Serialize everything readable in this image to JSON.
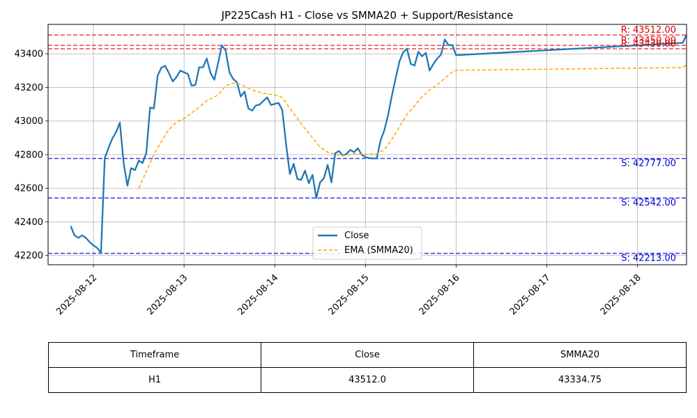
{
  "chart_data": {
    "type": "line",
    "title": "JP225Cash H1 - Close vs SMMA20 + Support/Resistance",
    "xlabel": "",
    "ylabel": "",
    "xlim": [
      "2025-08-11 12:00",
      "2025-08-18 13:00"
    ],
    "ylim": [
      42145,
      43575
    ],
    "grid": true,
    "legend_position": "lower center",
    "x_ticks": [
      "2025-08-12",
      "2025-08-13",
      "2025-08-14",
      "2025-08-15",
      "2025-08-16",
      "2025-08-17",
      "2025-08-18"
    ],
    "y_ticks": [
      42200,
      42400,
      42600,
      42800,
      43000,
      43200,
      43400
    ],
    "series": [
      {
        "name": "Close",
        "color": "#1f77b4",
        "style": "solid",
        "points": [
          [
            "2025-08-11 18:00",
            42375
          ],
          [
            "2025-08-11 19:00",
            42320
          ],
          [
            "2025-08-11 20:00",
            42305
          ],
          [
            "2025-08-11 21:00",
            42320
          ],
          [
            "2025-08-11 22:00",
            42305
          ],
          [
            "2025-08-11 23:00",
            42280
          ],
          [
            "2025-08-12 00:00",
            42260
          ],
          [
            "2025-08-12 01:00",
            42245
          ],
          [
            "2025-08-12 02:00",
            42215
          ],
          [
            "2025-08-12 03:00",
            42780
          ],
          [
            "2025-08-12 04:00",
            42840
          ],
          [
            "2025-08-12 05:00",
            42895
          ],
          [
            "2025-08-12 06:00",
            42935
          ],
          [
            "2025-08-12 07:00",
            42990
          ],
          [
            "2025-08-12 08:00",
            42750
          ],
          [
            "2025-08-12 09:00",
            42615
          ],
          [
            "2025-08-12 10:00",
            42720
          ],
          [
            "2025-08-12 11:00",
            42708
          ],
          [
            "2025-08-12 12:00",
            42765
          ],
          [
            "2025-08-12 13:00",
            42750
          ],
          [
            "2025-08-12 14:00",
            42810
          ],
          [
            "2025-08-12 15:00",
            43080
          ],
          [
            "2025-08-12 16:00",
            43075
          ],
          [
            "2025-08-12 17:00",
            43270
          ],
          [
            "2025-08-12 18:00",
            43318
          ],
          [
            "2025-08-12 19:00",
            43328
          ],
          [
            "2025-08-12 20:00",
            43285
          ],
          [
            "2025-08-12 21:00",
            43235
          ],
          [
            "2025-08-12 22:00",
            43262
          ],
          [
            "2025-08-12 23:00",
            43300
          ],
          [
            "2025-08-13 00:00",
            43290
          ],
          [
            "2025-08-13 01:00",
            43280
          ],
          [
            "2025-08-13 02:00",
            43210
          ],
          [
            "2025-08-13 03:00",
            43215
          ],
          [
            "2025-08-13 04:00",
            43320
          ],
          [
            "2025-08-13 05:00",
            43320
          ],
          [
            "2025-08-13 06:00",
            43372
          ],
          [
            "2025-08-13 07:00",
            43285
          ],
          [
            "2025-08-13 08:00",
            43245
          ],
          [
            "2025-08-13 09:00",
            43345
          ],
          [
            "2025-08-13 10:00",
            43450
          ],
          [
            "2025-08-13 11:00",
            43420
          ],
          [
            "2025-08-13 12:00",
            43290
          ],
          [
            "2025-08-13 13:00",
            43250
          ],
          [
            "2025-08-13 14:00",
            43230
          ],
          [
            "2025-08-13 15:00",
            43145
          ],
          [
            "2025-08-13 16:00",
            43175
          ],
          [
            "2025-08-13 17:00",
            43075
          ],
          [
            "2025-08-13 18:00",
            43062
          ],
          [
            "2025-08-13 19:00",
            43092
          ],
          [
            "2025-08-13 20:00",
            43098
          ],
          [
            "2025-08-13 21:00",
            43120
          ],
          [
            "2025-08-13 22:00",
            43140
          ],
          [
            "2025-08-13 23:00",
            43095
          ],
          [
            "2025-08-14 00:00",
            43102
          ],
          [
            "2025-08-14 01:00",
            43108
          ],
          [
            "2025-08-14 02:00",
            43065
          ],
          [
            "2025-08-14 03:00",
            42860
          ],
          [
            "2025-08-14 04:00",
            42685
          ],
          [
            "2025-08-14 05:00",
            42745
          ],
          [
            "2025-08-14 06:00",
            42655
          ],
          [
            "2025-08-14 07:00",
            42650
          ],
          [
            "2025-08-14 08:00",
            42705
          ],
          [
            "2025-08-14 09:00",
            42630
          ],
          [
            "2025-08-14 10:00",
            42680
          ],
          [
            "2025-08-14 11:00",
            42542
          ],
          [
            "2025-08-14 12:00",
            42635
          ],
          [
            "2025-08-14 13:00",
            42660
          ],
          [
            "2025-08-14 14:00",
            42740
          ],
          [
            "2025-08-14 15:00",
            42635
          ],
          [
            "2025-08-14 16:00",
            42808
          ],
          [
            "2025-08-14 17:00",
            42822
          ],
          [
            "2025-08-14 18:00",
            42795
          ],
          [
            "2025-08-14 19:00",
            42805
          ],
          [
            "2025-08-14 20:00",
            42828
          ],
          [
            "2025-08-14 21:00",
            42815
          ],
          [
            "2025-08-14 22:00",
            42838
          ],
          [
            "2025-08-14 23:00",
            42800
          ],
          [
            "2025-08-15 00:00",
            42785
          ],
          [
            "2025-08-15 01:00",
            42780
          ],
          [
            "2025-08-15 02:00",
            42777
          ],
          [
            "2025-08-15 03:00",
            42778
          ],
          [
            "2025-08-15 04:00",
            42885
          ],
          [
            "2025-08-15 05:00",
            42945
          ],
          [
            "2025-08-15 06:00",
            43035
          ],
          [
            "2025-08-15 07:00",
            43150
          ],
          [
            "2025-08-15 08:00",
            43255
          ],
          [
            "2025-08-15 09:00",
            43355
          ],
          [
            "2025-08-15 10:00",
            43410
          ],
          [
            "2025-08-15 11:00",
            43430
          ],
          [
            "2025-08-15 12:00",
            43340
          ],
          [
            "2025-08-15 13:00",
            43330
          ],
          [
            "2025-08-15 14:00",
            43412
          ],
          [
            "2025-08-15 15:00",
            43385
          ],
          [
            "2025-08-15 16:00",
            43405
          ],
          [
            "2025-08-15 17:00",
            43300
          ],
          [
            "2025-08-15 18:00",
            43340
          ],
          [
            "2025-08-15 19:00",
            43372
          ],
          [
            "2025-08-15 20:00",
            43395
          ],
          [
            "2025-08-15 21:00",
            43485
          ],
          [
            "2025-08-15 22:00",
            43452
          ],
          [
            "2025-08-15 23:00",
            43452
          ],
          [
            "2025-08-16 00:00",
            43392
          ],
          [
            "2025-08-18 12:00",
            43465
          ],
          [
            "2025-08-18 13:00",
            43512
          ]
        ]
      },
      {
        "name": "EMA (SMMA20)",
        "color": "#ffa500",
        "style": "dashed",
        "points": [
          [
            "2025-08-12 12:00",
            42600
          ],
          [
            "2025-08-12 14:00",
            42700
          ],
          [
            "2025-08-12 16:00",
            42800
          ],
          [
            "2025-08-12 18:00",
            42880
          ],
          [
            "2025-08-12 20:00",
            42950
          ],
          [
            "2025-08-12 22:00",
            42995
          ],
          [
            "2025-08-13 00:00",
            43015
          ],
          [
            "2025-08-13 03:00",
            43065
          ],
          [
            "2025-08-13 06:00",
            43120
          ],
          [
            "2025-08-13 09:00",
            43155
          ],
          [
            "2025-08-13 11:00",
            43210
          ],
          [
            "2025-08-13 13:00",
            43225
          ],
          [
            "2025-08-13 15:00",
            43218
          ],
          [
            "2025-08-13 18:00",
            43185
          ],
          [
            "2025-08-13 21:00",
            43165
          ],
          [
            "2025-08-14 00:00",
            43155
          ],
          [
            "2025-08-14 02:00",
            43140
          ],
          [
            "2025-08-14 04:00",
            43075
          ],
          [
            "2025-08-14 06:00",
            43015
          ],
          [
            "2025-08-14 08:00",
            42955
          ],
          [
            "2025-08-14 10:00",
            42900
          ],
          [
            "2025-08-14 12:00",
            42845
          ],
          [
            "2025-08-14 14:00",
            42815
          ],
          [
            "2025-08-14 16:00",
            42800
          ],
          [
            "2025-08-14 18:00",
            42795
          ],
          [
            "2025-08-14 21:00",
            42805
          ],
          [
            "2025-08-15 00:00",
            42802
          ],
          [
            "2025-08-15 03:00",
            42805
          ],
          [
            "2025-08-15 05:00",
            42830
          ],
          [
            "2025-08-15 07:00",
            42890
          ],
          [
            "2025-08-15 09:00",
            42965
          ],
          [
            "2025-08-15 11:00",
            43040
          ],
          [
            "2025-08-15 13:00",
            43090
          ],
          [
            "2025-08-15 15:00",
            43145
          ],
          [
            "2025-08-15 17:00",
            43185
          ],
          [
            "2025-08-15 19:00",
            43215
          ],
          [
            "2025-08-15 21:00",
            43255
          ],
          [
            "2025-08-15 23:00",
            43292
          ],
          [
            "2025-08-16 00:00",
            43302
          ],
          [
            "2025-08-18 12:00",
            43318
          ],
          [
            "2025-08-18 13:00",
            43334.75
          ]
        ]
      }
    ],
    "levels": [
      {
        "kind": "resistance",
        "value": 43512.0,
        "label": "R: 43512.00",
        "color": "#dd0000",
        "line_color": "#e8454a"
      },
      {
        "kind": "resistance",
        "value": 43450.0,
        "label": "R: 43450.00",
        "color": "#dd0000",
        "line_color": "#e8454a"
      },
      {
        "kind": "resistance",
        "value": 43430.0,
        "label": "R: 43430.00",
        "color": "#dd0000",
        "line_color": "#e8454a"
      },
      {
        "kind": "support",
        "value": 42777.0,
        "label": "S: 42777.00",
        "color": "#0000dd",
        "line_color": "#3a3add"
      },
      {
        "kind": "support",
        "value": 42542.0,
        "label": "S: 42542.00",
        "color": "#0000dd",
        "line_color": "#3a3add"
      },
      {
        "kind": "support",
        "value": 42213.0,
        "label": "S: 42213.00",
        "color": "#0000dd",
        "line_color": "#3a3add"
      }
    ]
  },
  "table": {
    "headers": [
      "Timeframe",
      "Close",
      "SMMA20"
    ],
    "row": [
      "H1",
      "43512.0",
      "43334.75"
    ]
  }
}
